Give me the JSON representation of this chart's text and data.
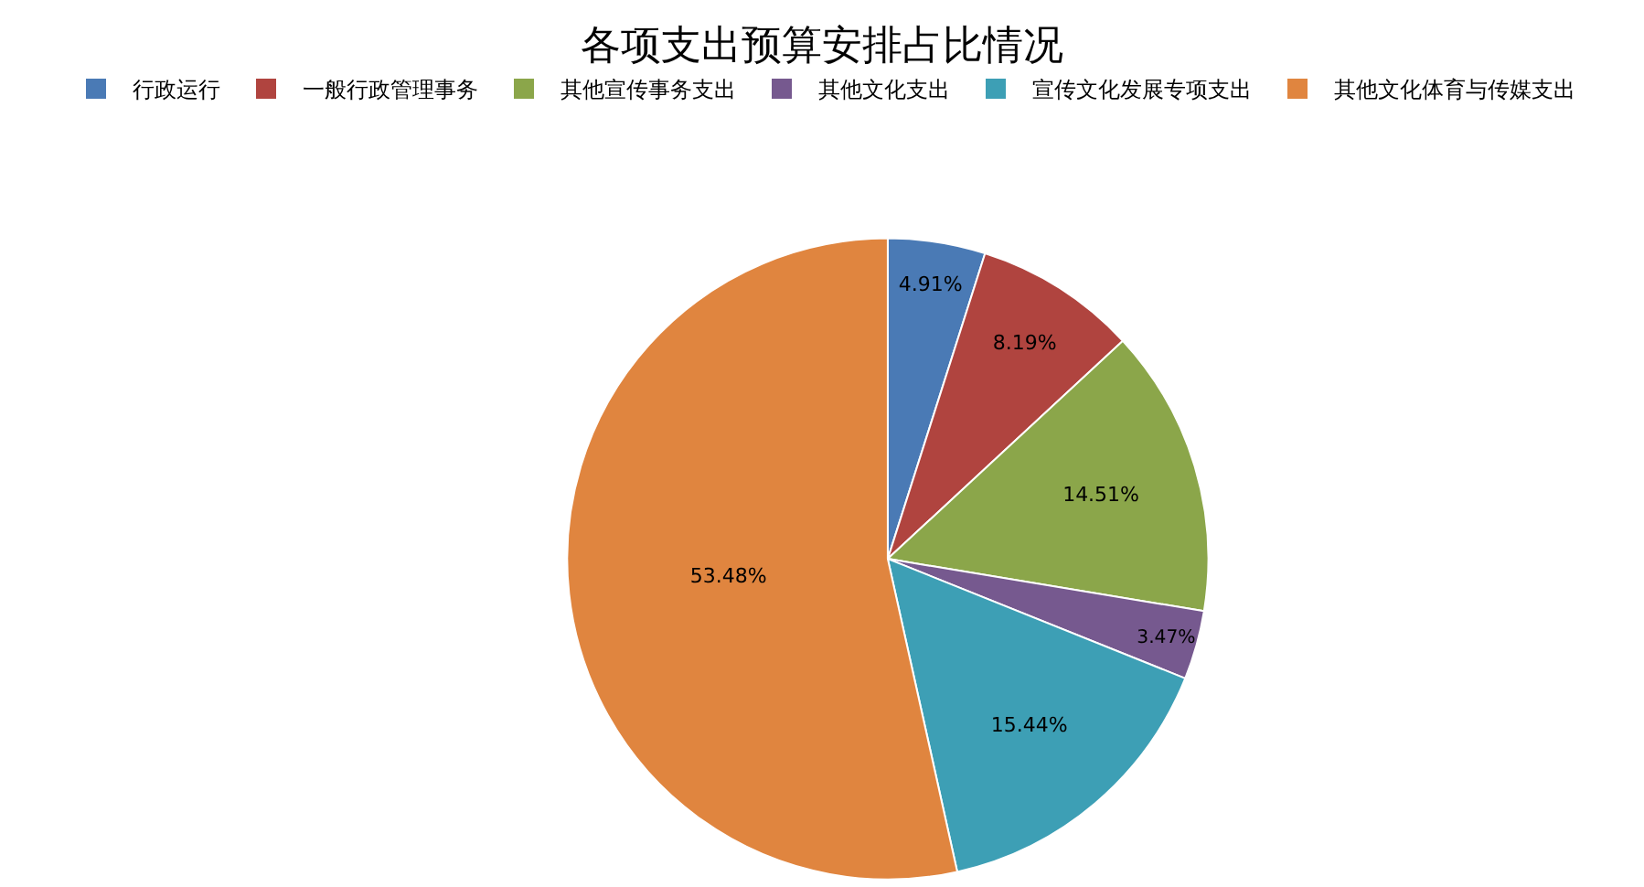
{
  "chart_data": {
    "type": "pie",
    "title": "各项支出预算安排占比情况",
    "categories": [
      "行政运行",
      "一般行政管理事务",
      "其他宣传事务支出",
      "其他文化支出",
      "宣传文化发展专项支出",
      "其他文化体育与传媒支出"
    ],
    "values": [
      4.91,
      8.19,
      14.51,
      3.47,
      15.44,
      53.48
    ],
    "colors": [
      "#4a7ab5",
      "#b0443f",
      "#8ba64a",
      "#76598f",
      "#3d9fb5",
      "#e0853f"
    ],
    "value_labels": [
      "4.91%",
      "8.19%",
      "14.51%",
      "3.47%",
      "15.44%",
      "53.48%"
    ],
    "legend": "top"
  }
}
